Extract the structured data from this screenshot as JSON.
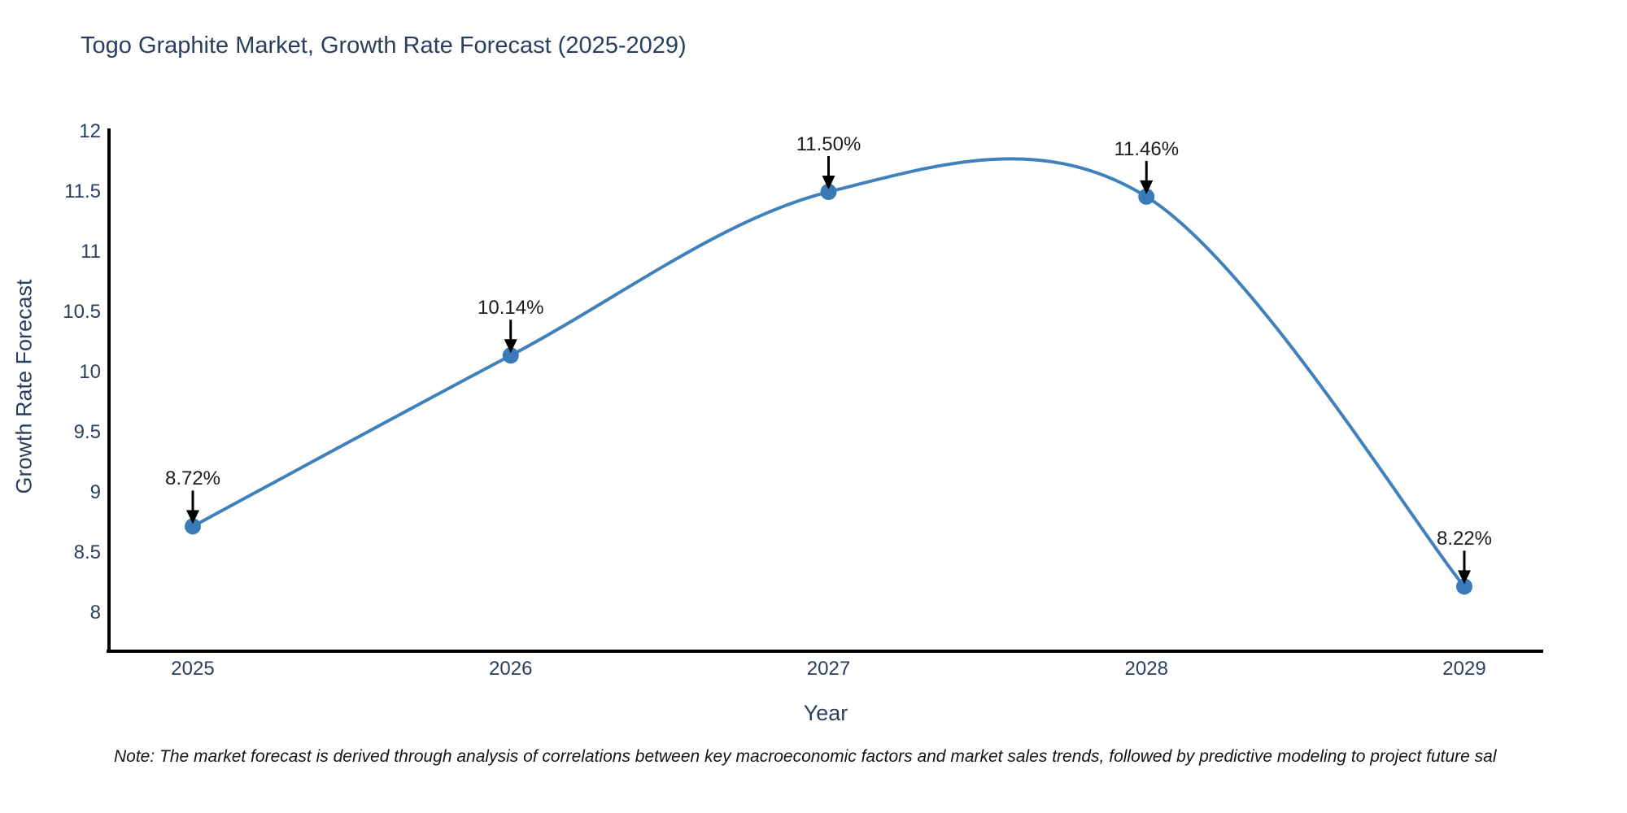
{
  "title": "Togo Graphite Market, Growth Rate Forecast (2025-2029)",
  "note": "Note: The market forecast is derived through analysis of correlations between key macroeconomic factors and market sales trends, followed by predictive modeling to project future sal",
  "chart_data": {
    "type": "line",
    "title": "Togo Graphite Market, Growth Rate Forecast (2025-2029)",
    "xlabel": "Year",
    "ylabel": "Growth Rate Forecast",
    "categories": [
      "2025",
      "2026",
      "2027",
      "2028",
      "2029"
    ],
    "values": [
      8.72,
      10.14,
      11.5,
      11.46,
      8.22
    ],
    "point_labels": [
      "8.72%",
      "10.14%",
      "11.50%",
      "11.46%",
      "8.22%"
    ],
    "yticks": [
      12,
      11.5,
      11,
      10.5,
      10,
      9.5,
      9,
      8.5,
      8
    ],
    "ytick_labels": [
      "12",
      "11.5",
      "11",
      "10.5",
      "10",
      "9.5",
      "9",
      "8.5",
      "8"
    ],
    "ylim": [
      7.68,
      12
    ],
    "line_shape": "spline",
    "grid": false,
    "legend": "none",
    "colors": {
      "line": "#4181bb",
      "marker": "#3a7ab8",
      "axis": "#000000",
      "arrow": "#000000",
      "text": "#2a3f5f",
      "annotation_text": "#1c1c1c"
    }
  }
}
